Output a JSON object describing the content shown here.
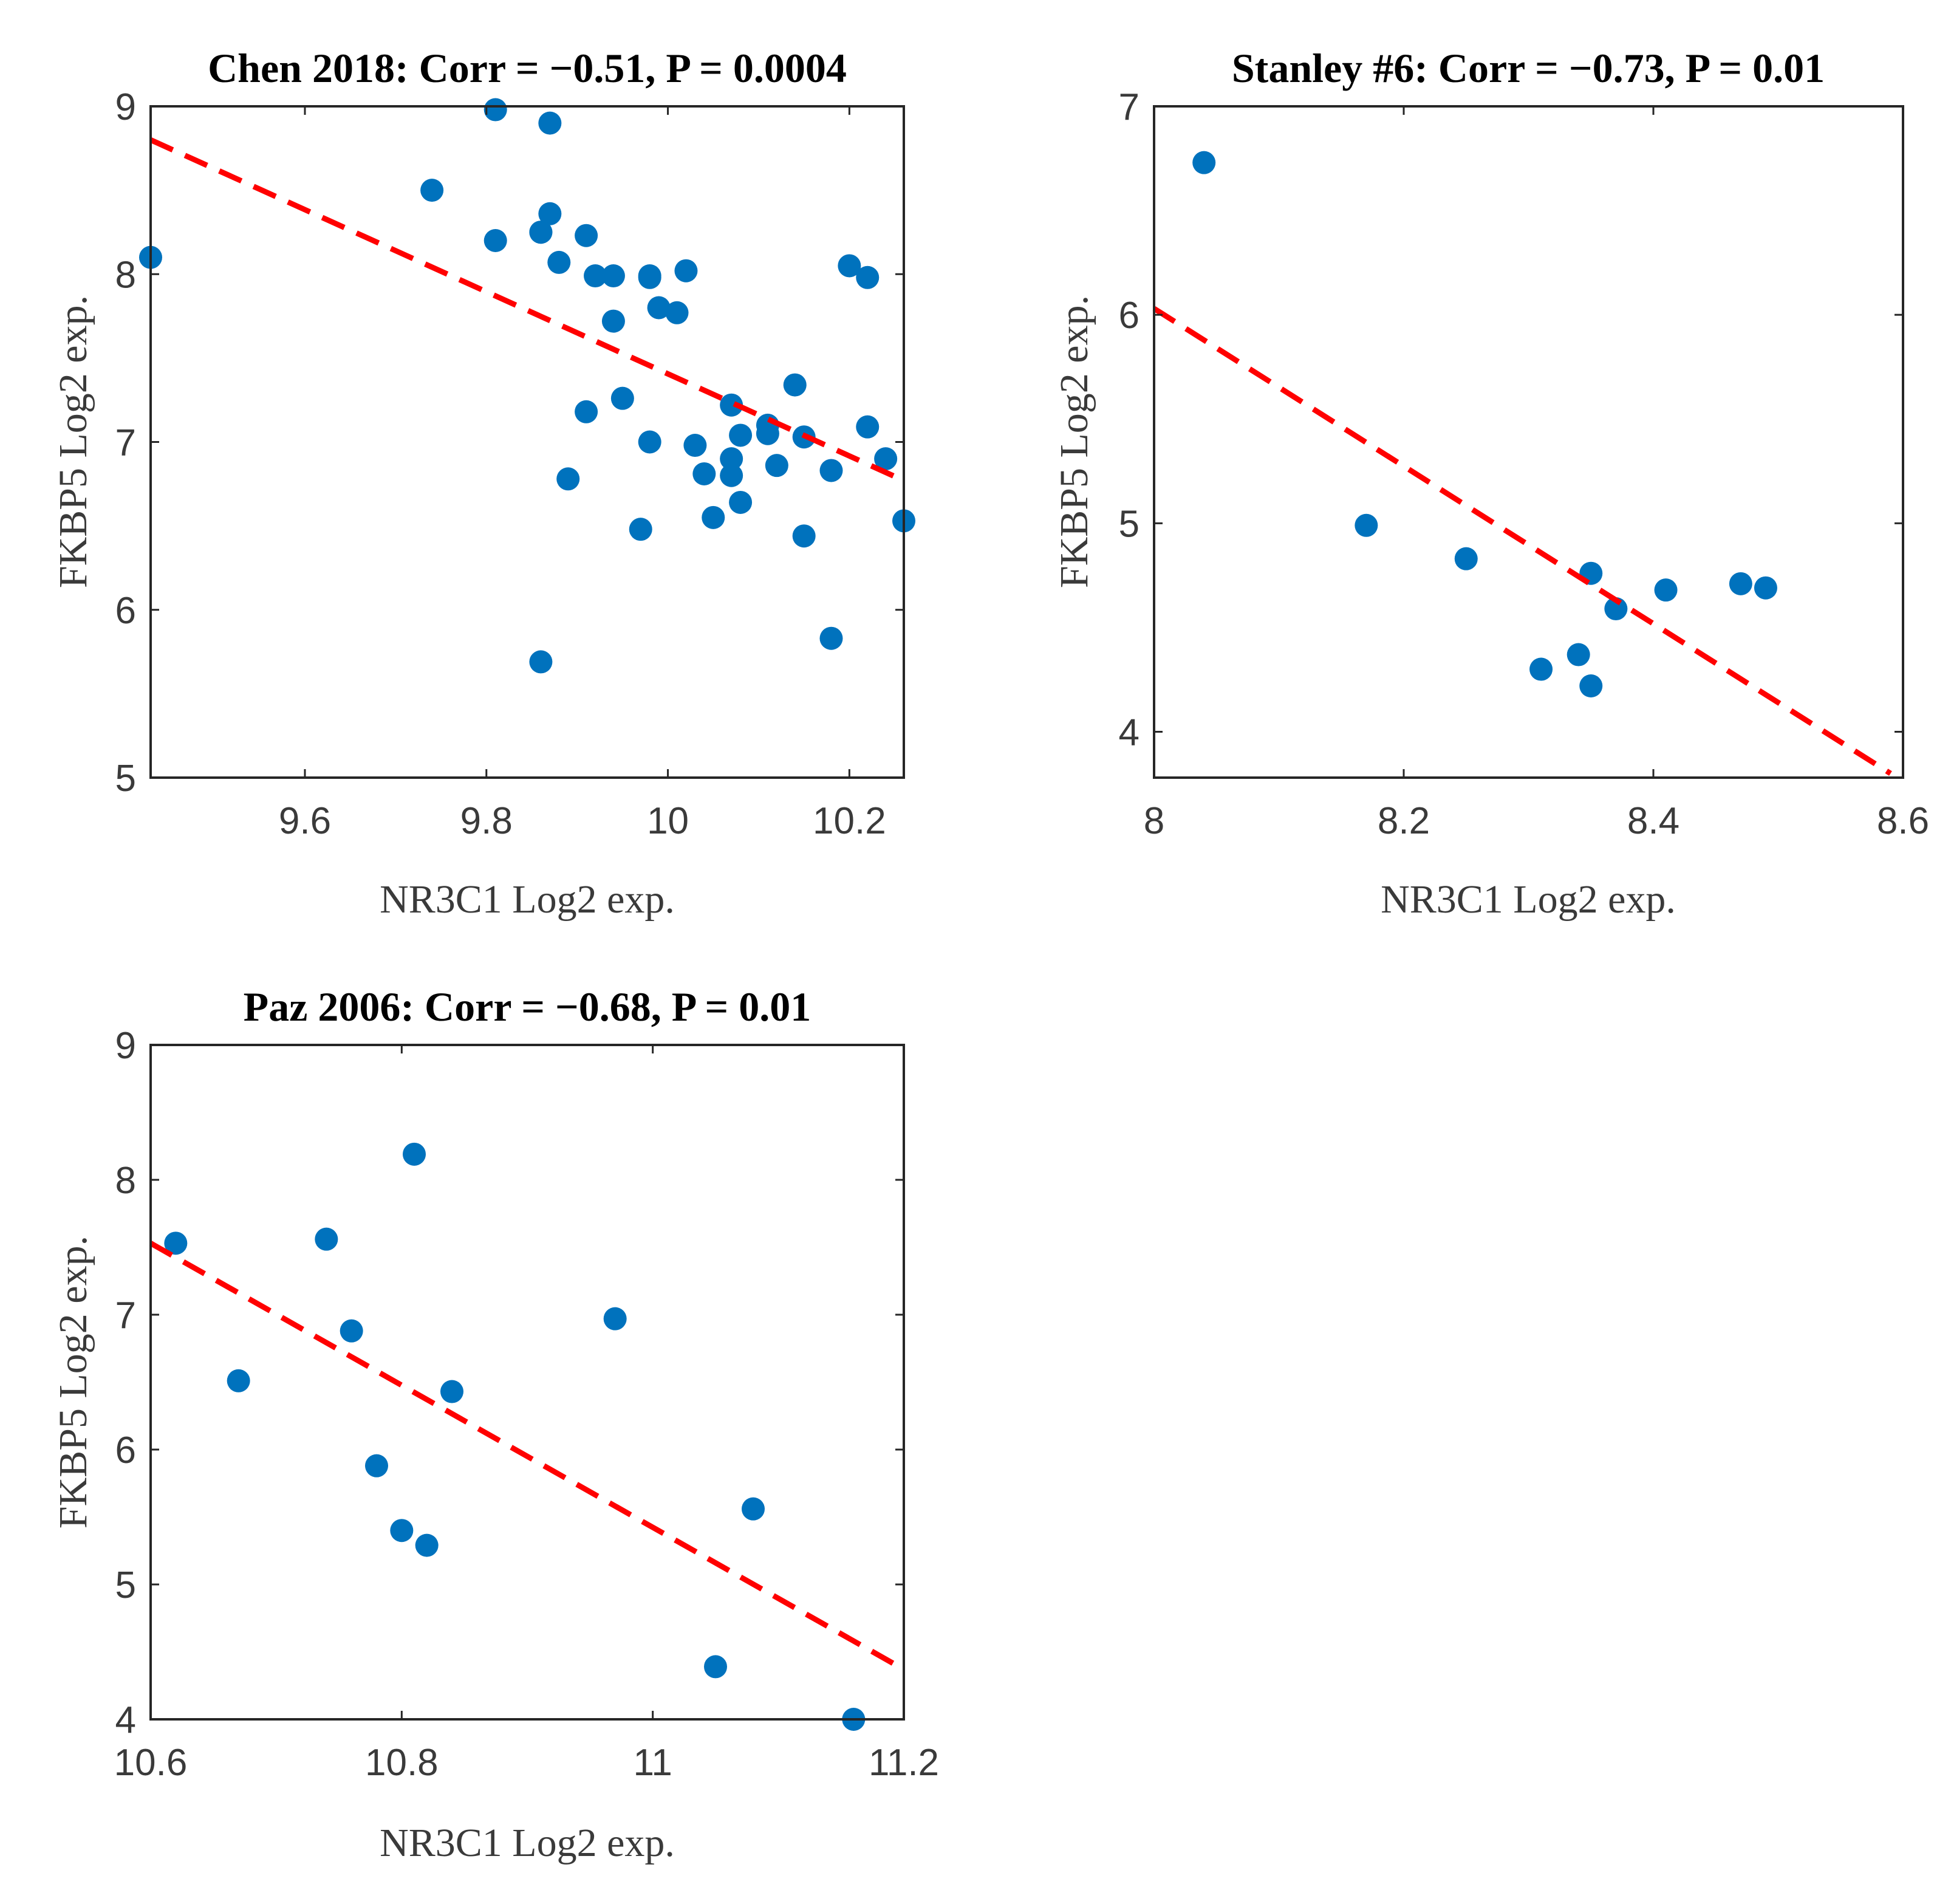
{
  "chart_data": [
    {
      "type": "scatter",
      "title": "Chen 2018: Corr = −0.51, P = 0.0004",
      "xlabel": "NR3C1 Log2 exp.",
      "ylabel": "FKBP5 Log2 exp.",
      "xlim": [
        9.43,
        10.26
      ],
      "ylim": [
        5,
        9
      ],
      "xticks": [
        9.6,
        9.8,
        10,
        10.2
      ],
      "xtick_labels": [
        "9.6",
        "9.8",
        "10",
        "10.2"
      ],
      "yticks": [
        5,
        6,
        7,
        8,
        9
      ],
      "ytick_labels": [
        "5",
        "6",
        "7",
        "8",
        "9"
      ],
      "grid": false,
      "point_color": "#0072BD",
      "fit_color": "#FF0000",
      "fit_line": {
        "x": [
          9.43,
          10.26
        ],
        "y": [
          8.8,
          6.77
        ]
      },
      "points": {
        "x": [
          9.43,
          9.74,
          9.81,
          9.81,
          9.86,
          9.87,
          9.87,
          9.88,
          9.91,
          9.92,
          9.94,
          9.98,
          9.98,
          9.99,
          10.01,
          10.02,
          9.94,
          9.95,
          9.91,
          9.89,
          9.98,
          9.97,
          10.03,
          10.04,
          10.05,
          10.07,
          10.07,
          10.07,
          10.08,
          10.08,
          10.11,
          10.11,
          10.12,
          10.14,
          10.15,
          10.15,
          10.18,
          10.18,
          10.2,
          10.22,
          10.22,
          10.24,
          10.26,
          9.86,
          9.86
        ],
        "y": [
          8.1,
          8.5,
          8.98,
          8.2,
          8.25,
          8.9,
          8.36,
          8.07,
          8.23,
          7.99,
          7.99,
          7.98,
          7.99,
          7.8,
          7.77,
          8.02,
          7.72,
          7.26,
          7.18,
          6.78,
          7.0,
          6.48,
          6.98,
          6.81,
          6.55,
          7.22,
          6.9,
          6.8,
          7.04,
          6.64,
          7.1,
          7.05,
          6.86,
          7.34,
          7.03,
          6.44,
          6.83,
          5.83,
          8.05,
          7.98,
          7.09,
          6.9,
          6.53,
          5.69,
          8.25
        ]
      }
    },
    {
      "type": "scatter",
      "title": "Stanley #6: Corr = −0.73, P = 0.01",
      "xlabel": "NR3C1 Log2 exp.",
      "ylabel": "FKBP5 Log2 exp.",
      "xlim": [
        8,
        8.6
      ],
      "ylim": [
        3.78,
        7
      ],
      "xticks": [
        8,
        8.2,
        8.4,
        8.6
      ],
      "xtick_labels": [
        "8",
        "8.2",
        "8.4",
        "8.6"
      ],
      "yticks": [
        4,
        5,
        6,
        7
      ],
      "ytick_labels": [
        "4",
        "5",
        "6",
        "7"
      ],
      "grid": false,
      "point_color": "#0072BD",
      "fit_color": "#FF0000",
      "fit_line": {
        "x": [
          8,
          8.59
        ],
        "y": [
          6.03,
          3.8
        ]
      },
      "points": {
        "x": [
          8.04,
          8.17,
          8.25,
          8.31,
          8.34,
          8.35,
          8.35,
          8.37,
          8.41,
          8.47,
          8.49
        ],
        "y": [
          6.73,
          4.99,
          4.83,
          4.3,
          4.37,
          4.76,
          4.22,
          4.59,
          4.68,
          4.71,
          4.69
        ]
      }
    },
    {
      "type": "scatter",
      "title": "Paz 2006: Corr = −0.68, P = 0.01",
      "xlabel": "NR3C1 Log2 exp.",
      "ylabel": "FKBP5 Log2 exp.",
      "xlim": [
        10.6,
        11.2
      ],
      "ylim": [
        4,
        9
      ],
      "xticks": [
        10.6,
        10.8,
        11,
        11.2
      ],
      "xtick_labels": [
        "10.6",
        "10.8",
        "11",
        "11.2"
      ],
      "yticks": [
        4,
        5,
        6,
        7,
        8,
        9
      ],
      "ytick_labels": [
        "4",
        "5",
        "6",
        "7",
        "8",
        "9"
      ],
      "grid": false,
      "point_color": "#0072BD",
      "fit_color": "#FF0000",
      "fit_line": {
        "x": [
          10.6,
          11.2
        ],
        "y": [
          7.53,
          4.37
        ]
      },
      "points": {
        "x": [
          10.62,
          10.67,
          10.74,
          10.76,
          10.78,
          10.8,
          10.81,
          10.82,
          10.84,
          10.97,
          11.05,
          11.08,
          11.16
        ],
        "y": [
          7.53,
          6.51,
          7.56,
          6.88,
          5.88,
          5.4,
          8.19,
          5.29,
          6.43,
          6.97,
          4.39,
          5.56,
          4.0
        ]
      }
    }
  ]
}
